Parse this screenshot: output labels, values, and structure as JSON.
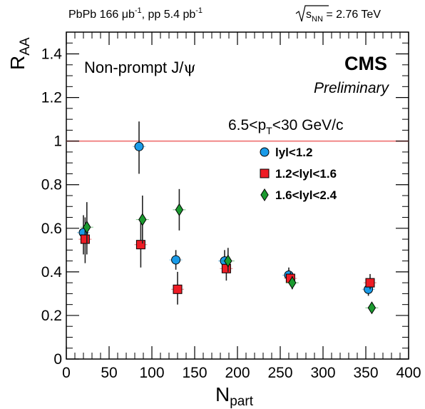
{
  "chart_data": {
    "type": "scatter",
    "header_left": {
      "main": "PbPb 166 ",
      "mu": "μ",
      "b": "b",
      "sup1": "-1",
      "rest": ", pp 5.4 pb",
      "sup2": "-1"
    },
    "header_right": {
      "root_s": "s",
      "root_sub": "NN",
      "rest": " = 2.76 TeV"
    },
    "annotation_title": {
      "main": "Non-prompt J/",
      "psi": "ψ"
    },
    "experiment": "CMS",
    "status": "Preliminary",
    "selection": {
      "pre": "6.5<p",
      "sub": "T",
      "post": "<30 GeV/c"
    },
    "xlabel": {
      "main": "N",
      "sub": "part"
    },
    "ylabel": {
      "main": "R",
      "sub": "AA"
    },
    "xlim": [
      0,
      400
    ],
    "ylim": [
      0,
      1.5
    ],
    "xticks": [
      "0",
      "50",
      "100",
      "150",
      "200",
      "250",
      "300",
      "350",
      "400"
    ],
    "yticks": [
      "0",
      "0.2",
      "0.4",
      "0.6",
      "0.8",
      "1",
      "1.2",
      "1.4"
    ],
    "reference_line": 1.0,
    "series": [
      {
        "name": "lyl<1.2",
        "marker": "circle",
        "color": "#1a9be8",
        "points": [
          {
            "x": 20,
            "y": 0.58,
            "lo": 0.48,
            "hi": 0.66
          },
          {
            "x": 85,
            "y": 0.975,
            "lo": 0.85,
            "hi": 1.09
          },
          {
            "x": 128,
            "y": 0.455,
            "lo": 0.41,
            "hi": 0.5
          },
          {
            "x": 185,
            "y": 0.45,
            "lo": 0.41,
            "hi": 0.5
          },
          {
            "x": 260,
            "y": 0.385,
            "lo": 0.35,
            "hi": 0.42
          },
          {
            "x": 353,
            "y": 0.32,
            "lo": 0.29,
            "hi": 0.35
          }
        ]
      },
      {
        "name": "1.2<lyl<1.6",
        "marker": "square",
        "color": "#ee1c25",
        "points": [
          {
            "x": 22,
            "y": 0.55,
            "lo": 0.44,
            "hi": 0.65
          },
          {
            "x": 87,
            "y": 0.525,
            "lo": 0.42,
            "hi": 0.63
          },
          {
            "x": 130,
            "y": 0.32,
            "lo": 0.25,
            "hi": 0.4
          },
          {
            "x": 187,
            "y": 0.415,
            "lo": 0.36,
            "hi": 0.46
          },
          {
            "x": 262,
            "y": 0.37,
            "lo": 0.34,
            "hi": 0.4
          },
          {
            "x": 355,
            "y": 0.35,
            "lo": 0.32,
            "hi": 0.39
          }
        ]
      },
      {
        "name": "1.6<lyl<2.4",
        "marker": "diamond",
        "color": "#1b9a2f",
        "points": [
          {
            "x": 24,
            "y": 0.605,
            "lo": 0.48,
            "hi": 0.72
          },
          {
            "x": 89,
            "y": 0.64,
            "lo": 0.53,
            "hi": 0.75
          },
          {
            "x": 132,
            "y": 0.685,
            "lo": 0.59,
            "hi": 0.78
          },
          {
            "x": 189,
            "y": 0.45,
            "lo": 0.4,
            "hi": 0.51
          },
          {
            "x": 264,
            "y": 0.35,
            "lo": 0.32,
            "hi": 0.38
          },
          {
            "x": 357,
            "y": 0.235,
            "lo": 0.21,
            "hi": 0.26
          }
        ]
      }
    ]
  }
}
